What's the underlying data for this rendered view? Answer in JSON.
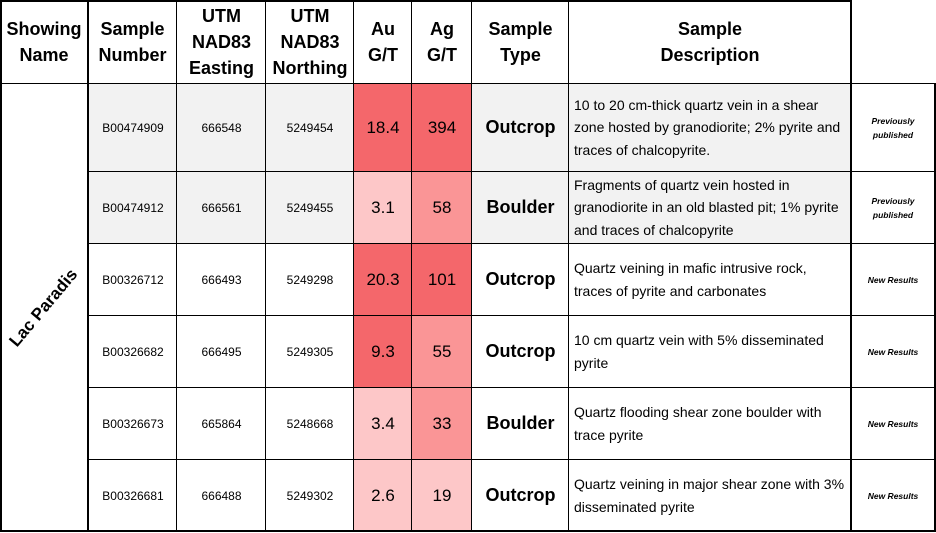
{
  "headers": {
    "showing_name": [
      "Showing",
      "Name"
    ],
    "sample_number": [
      "Sample",
      "Number"
    ],
    "easting": [
      "UTM",
      "NAD83",
      "Easting"
    ],
    "northing": [
      "UTM",
      "NAD83",
      "Northing"
    ],
    "au": [
      "Au",
      "G/T"
    ],
    "ag": [
      "Ag",
      "G/T"
    ],
    "sample_type": [
      "Sample",
      "Type"
    ],
    "sample_description": [
      "Sample",
      "Description"
    ]
  },
  "showing_name": "Lac Paradis",
  "colors": {
    "grade_high": "#f4676b",
    "grade_mid": "#fa9596",
    "grade_low": "#fdc7c8",
    "stripe": "#f2f2f2"
  },
  "rows": [
    {
      "sample_number": "B00474909",
      "easting": "666548",
      "northing": "5249454",
      "au": "18.4",
      "ag": "394",
      "sample_type": "Outcrop",
      "description": "10 to 20 cm-thick quartz vein in a shear zone hosted by granodiorite; 2%  pyrite and traces of chalcopyrite.",
      "note": "Previously published"
    },
    {
      "sample_number": "B00474912",
      "easting": "666561",
      "northing": "5249455",
      "au": "3.1",
      "ag": "58",
      "sample_type": "Boulder",
      "description": "Fragments of quartz vein hosted in granodiorite in an old blasted pit; 1% pyrite and traces of chalcopyrite",
      "note": "Previously published"
    },
    {
      "sample_number": "B00326712",
      "easting": "666493",
      "northing": "5249298",
      "au": "20.3",
      "ag": "101",
      "sample_type": "Outcrop",
      "description": "Quartz veining in mafic intrusive rock, traces of pyrite and carbonates",
      "note": "New Results"
    },
    {
      "sample_number": "B00326682",
      "easting": "666495",
      "northing": "5249305",
      "au": "9.3",
      "ag": "55",
      "sample_type": "Outcrop",
      "description": "10 cm quartz vein with 5% disseminated pyrite",
      "note": "New Results"
    },
    {
      "sample_number": "B00326673",
      "easting": "665864",
      "northing": "5248668",
      "au": "3.4",
      "ag": "33",
      "sample_type": "Boulder",
      "description": "Quartz flooding shear zone boulder with trace pyrite",
      "note": "New Results"
    },
    {
      "sample_number": "B00326681",
      "easting": "666488",
      "northing": "5249302",
      "au": "2.6",
      "ag": "19",
      "sample_type": "Outcrop",
      "description": "Quartz veining in major shear zone with 3% disseminated pyrite",
      "note": "New Results"
    }
  ]
}
